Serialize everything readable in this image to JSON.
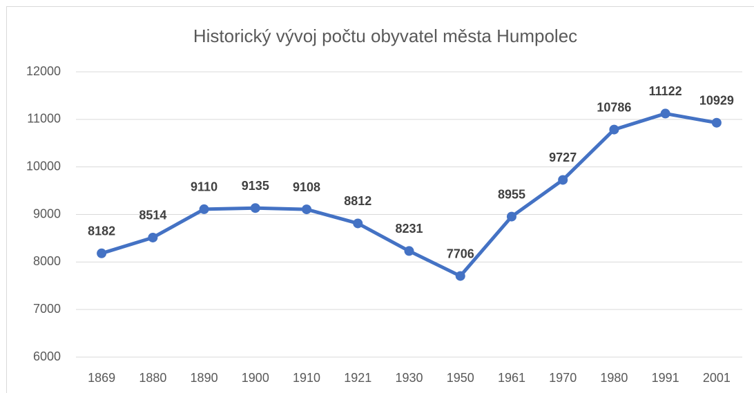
{
  "chart_data": {
    "type": "line",
    "title": "Historický vývoj počtu obyvatel města Humpolec",
    "categories": [
      "1869",
      "1880",
      "1890",
      "1900",
      "1910",
      "1921",
      "1930",
      "1950",
      "1961",
      "1970",
      "1980",
      "1991",
      "2001"
    ],
    "values": [
      8182,
      8514,
      9110,
      9135,
      9108,
      8812,
      8231,
      7706,
      8955,
      9727,
      10786,
      11122,
      10929
    ],
    "color": "#4472c4",
    "ylim": [
      6000,
      12000
    ],
    "yticks": [
      6000,
      7000,
      8000,
      9000,
      10000,
      11000,
      12000
    ],
    "grid": true
  }
}
